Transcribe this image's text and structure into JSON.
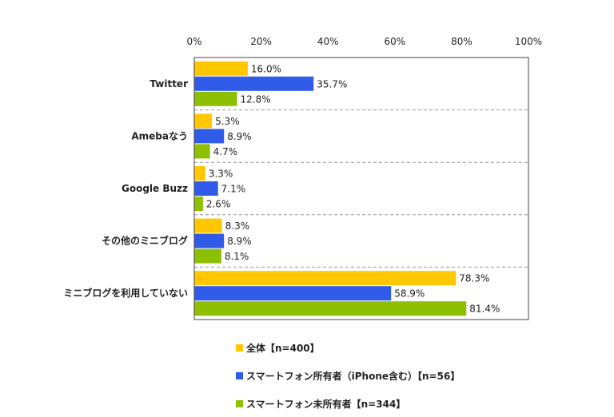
{
  "chart_data": {
    "type": "bar",
    "orientation": "horizontal",
    "categories": [
      "Twitter",
      "Amebaなう",
      "Google Buzz",
      "その他のミニブログ",
      "ミニブログを利用していない"
    ],
    "x_ticks": [
      "0%",
      "20%",
      "40%",
      "60%",
      "80%",
      "100%"
    ],
    "xlim": [
      0,
      100
    ],
    "grid": false,
    "legend_position": "bottom",
    "value_suffix": "%",
    "series": [
      {
        "name": "全体【n=400】",
        "color": "#FFC700",
        "values": [
          16.0,
          5.3,
          3.3,
          8.3,
          78.3
        ],
        "labels": [
          "16.0%",
          "5.3%",
          "3.3%",
          "8.3%",
          "78.3%"
        ]
      },
      {
        "name": "スマートフォン所有者（iPhone含む）【n=56】",
        "color": "#2F5BE8",
        "values": [
          35.7,
          8.9,
          7.1,
          8.9,
          58.9
        ],
        "labels": [
          "35.7%",
          "8.9%",
          "7.1%",
          "8.9%",
          "58.9%"
        ]
      },
      {
        "name": "スマートフォン未所有者【n=344】",
        "color": "#8DC000",
        "values": [
          12.8,
          4.7,
          2.6,
          8.1,
          81.4
        ],
        "labels": [
          "12.8%",
          "4.7%",
          "2.6%",
          "8.1%",
          "81.4%"
        ]
      }
    ]
  }
}
